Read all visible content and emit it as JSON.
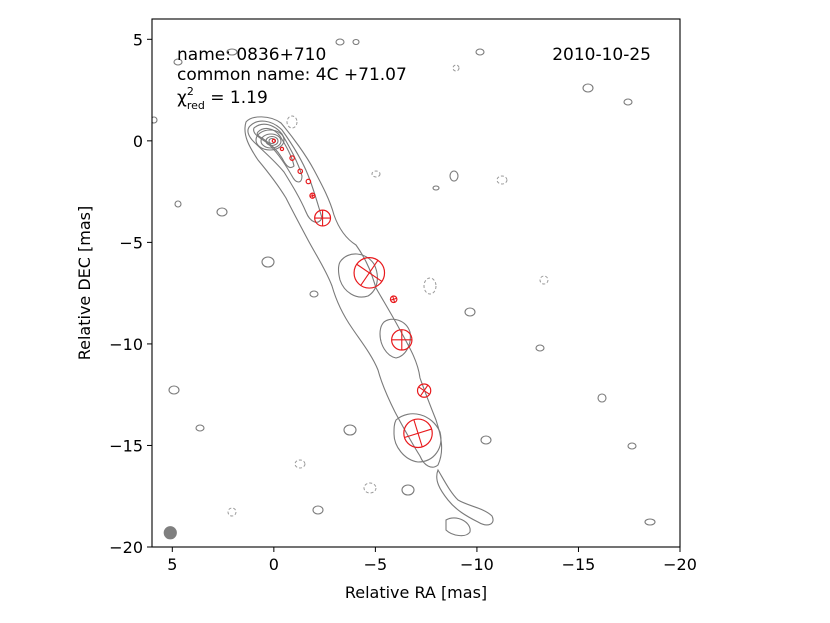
{
  "chart_data": {
    "type": "scatter",
    "xlabel": "Relative RA [mas]",
    "ylabel": "Relative DEC [mas]",
    "xlim": [
      6,
      -20
    ],
    "ylim": [
      -20,
      6
    ],
    "xticks": [
      5,
      0,
      -5,
      -10,
      -15,
      -20
    ],
    "xtick_labels": [
      "5",
      "0",
      "−5",
      "−10",
      "−15",
      "−20"
    ],
    "yticks": [
      5,
      0,
      -5,
      -10,
      -15,
      -20
    ],
    "ytick_labels": [
      "5",
      "0",
      "−5",
      "−10",
      "−15",
      "−20"
    ],
    "annotations": {
      "name": "name: 0836+710",
      "common_name": "common name: 4C +71.07",
      "chi_symbol": "χ",
      "chi_sup": "2",
      "chi_sub": "red",
      "chi_value": " = 1.19",
      "date": "2010-10-25"
    },
    "component_color": "#e8191c",
    "contour_color": "#7a7a7a",
    "beam": {
      "x": 5.1,
      "y": -19.3,
      "fwhm": 0.65,
      "color": "#7f7f7f"
    },
    "components": [
      {
        "x": 0.0,
        "y": 0.0,
        "fwhm": 0.08
      },
      {
        "x": -0.4,
        "y": -0.4,
        "fwhm": 0.12
      },
      {
        "x": -0.9,
        "y": -0.85,
        "fwhm": 0.22
      },
      {
        "x": -1.3,
        "y": -1.5,
        "fwhm": 0.22
      },
      {
        "x": -1.7,
        "y": -2.0,
        "fwhm": 0.22
      },
      {
        "x": -1.9,
        "y": -2.7,
        "fwhm": 0.25
      },
      {
        "x": -2.4,
        "y": -3.8,
        "fwhm": 0.78
      },
      {
        "x": -4.7,
        "y": -6.5,
        "fwhm": 1.5
      },
      {
        "x": -5.9,
        "y": -7.8,
        "fwhm": 0.32
      },
      {
        "x": -6.3,
        "y": -9.8,
        "fwhm": 1.0
      },
      {
        "x": -7.4,
        "y": -12.3,
        "fwhm": 0.65
      },
      {
        "x": -7.1,
        "y": -14.4,
        "fwhm": 1.4
      }
    ]
  }
}
